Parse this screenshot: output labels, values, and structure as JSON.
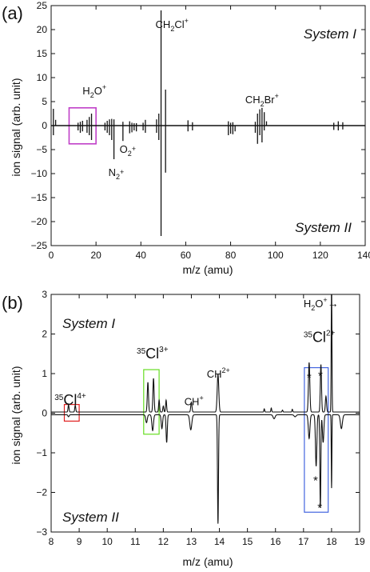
{
  "chart_data": [
    {
      "panel_label": "(a)",
      "type": "line",
      "xlabel": "m/z (amu)",
      "ylabel": "ion signal (arb. unit)",
      "xlim": [
        0,
        140
      ],
      "ylim": [
        -25,
        25
      ],
      "x_ticks": [
        "0",
        "20",
        "40",
        "60",
        "80",
        "100",
        "120",
        "140"
      ],
      "y_ticks": [
        "25",
        "20",
        "15",
        "10",
        "5",
        "0",
        "−5",
        "−10",
        "−15",
        "−20",
        "−25"
      ],
      "top_label": "System I",
      "bottom_label": "System II",
      "annotations": [
        {
          "base": "H",
          "sub": "2",
          "rest": "O",
          "sup": "+",
          "x": 14,
          "y": 6.5
        },
        {
          "base": "CH",
          "sub": "2",
          "rest": "Cl",
          "sup": "+",
          "x": 46.5,
          "y": 20.3
        },
        {
          "base": "CH",
          "sub": "2",
          "rest": "Br",
          "sup": "+",
          "x": 86.5,
          "y": 4.7
        },
        {
          "base": "O",
          "sub": "2",
          "rest": "",
          "sup": "+",
          "x": 30.5,
          "y": -5.7
        },
        {
          "base": "N",
          "sub": "2",
          "rest": "",
          "sup": "+",
          "x": 25.5,
          "y": -10.5
        }
      ],
      "highlight": {
        "color": "#c040c8",
        "x": [
          8,
          20
        ],
        "y": [
          -3.8,
          3.7
        ]
      },
      "system_I_peaks": [
        [
          1,
          3.5
        ],
        [
          2,
          1.2
        ],
        [
          12,
          0.6
        ],
        [
          13,
          0.8
        ],
        [
          14,
          1.0
        ],
        [
          16,
          1.2
        ],
        [
          17,
          1.8
        ],
        [
          18,
          2.5
        ],
        [
          24,
          0.6
        ],
        [
          25,
          1.0
        ],
        [
          26,
          1.3
        ],
        [
          27,
          1.4
        ],
        [
          28,
          1.3
        ],
        [
          32,
          0.8
        ],
        [
          35,
          0.9
        ],
        [
          36,
          0.6
        ],
        [
          37,
          0.5
        ],
        [
          38,
          0.5
        ],
        [
          41,
          0.6
        ],
        [
          42,
          1.2
        ],
        [
          47,
          1.3
        ],
        [
          48,
          2.5
        ],
        [
          49,
          24.0
        ],
        [
          51,
          7.5
        ],
        [
          61,
          1.1
        ],
        [
          63,
          0.7
        ],
        [
          79,
          0.9
        ],
        [
          80,
          0.6
        ],
        [
          81,
          0.7
        ],
        [
          91,
          0.8
        ],
        [
          92,
          2.5
        ],
        [
          93,
          3.4
        ],
        [
          94,
          3.7
        ],
        [
          95,
          2.8
        ],
        [
          96,
          0.9
        ],
        [
          126,
          0.6
        ],
        [
          128,
          0.9
        ],
        [
          130,
          0.7
        ]
      ],
      "system_II_peaks": [
        [
          1,
          -2.0
        ],
        [
          12,
          -1.0
        ],
        [
          13,
          -1.5
        ],
        [
          14,
          -1.2
        ],
        [
          16,
          -1.5
        ],
        [
          17,
          -2.0
        ],
        [
          18,
          -3.0
        ],
        [
          24,
          -1.0
        ],
        [
          25,
          -1.5
        ],
        [
          26,
          -2.0
        ],
        [
          27,
          -3.0
        ],
        [
          28,
          -7.0
        ],
        [
          32,
          -3.2
        ],
        [
          35,
          -1.6
        ],
        [
          36,
          -1.4
        ],
        [
          37,
          -1.0
        ],
        [
          38,
          -1.2
        ],
        [
          41,
          -1.0
        ],
        [
          42,
          -1.5
        ],
        [
          47,
          -1.5
        ],
        [
          48,
          -3.0
        ],
        [
          49,
          -23.0
        ],
        [
          51,
          -9.8
        ],
        [
          61,
          -1.2
        ],
        [
          63,
          -1.0
        ],
        [
          79,
          -2.0
        ],
        [
          80,
          -1.7
        ],
        [
          81,
          -1.8
        ],
        [
          82,
          -1.2
        ],
        [
          91,
          -1.5
        ],
        [
          92,
          -3.8
        ],
        [
          93,
          -2.0
        ],
        [
          94,
          -3.5
        ],
        [
          95,
          -1.0
        ],
        [
          126,
          -0.9
        ],
        [
          128,
          -1.0
        ],
        [
          130,
          -0.8
        ]
      ]
    },
    {
      "panel_label": "(b)",
      "type": "line",
      "xlabel": "m/z (amu)",
      "ylabel": "ion signal (arb. unit)",
      "xlim": [
        8,
        19
      ],
      "ylim": [
        -3,
        3
      ],
      "x_ticks": [
        "8",
        "9",
        "10",
        "11",
        "12",
        "13",
        "14",
        "15",
        "16",
        "17",
        "18",
        "19"
      ],
      "y_ticks": [
        "3",
        "2",
        "1",
        "0",
        "−1",
        "−2",
        "−3"
      ],
      "top_label": "System I",
      "bottom_label": "System II",
      "annotations": [
        {
          "iso": "35",
          "el": "Cl",
          "charge": "4+",
          "color": "#e02020",
          "x": 8.12,
          "y": 0.21
        },
        {
          "iso": "35",
          "el": "Cl",
          "charge": "3+",
          "color": "#66dd22",
          "x": 11.05,
          "y": 1.38
        },
        {
          "iso": "35",
          "el": "Cl",
          "charge": "2+",
          "color": "#3050e0",
          "x": 17.0,
          "y": 1.8
        },
        {
          "base": "CH",
          "sub": "",
          "rest": "",
          "sup": "+",
          "color": "#111111",
          "x": 12.75,
          "y": 0.2
        },
        {
          "base": "CH",
          "sub": "",
          "rest": "",
          "sup": "2+",
          "color": "#111111",
          "x": 13.55,
          "y": 0.9
        },
        {
          "base": "H",
          "sub": "2",
          "rest": "O",
          "sup": "+",
          "arrow": "→",
          "color": "#111111",
          "x": 17.0,
          "y": 2.68
        }
      ],
      "highlights": [
        {
          "color": "#e02020",
          "x": [
            8.47,
            9.0
          ],
          "y": [
            -0.2,
            0.22
          ]
        },
        {
          "color": "#66dd22",
          "x": [
            11.3,
            11.85
          ],
          "y": [
            -0.53,
            1.1
          ]
        },
        {
          "color": "#4466e0",
          "x": [
            17.03,
            17.88
          ],
          "y": [
            -2.5,
            1.15
          ]
        }
      ],
      "stars": [
        {
          "x": 17.2,
          "y": 1.0
        },
        {
          "x": 17.6,
          "y": 1.05
        },
        {
          "x": 17.43,
          "y": -1.6
        },
        {
          "x": 17.58,
          "y": -2.28
        }
      ],
      "system_I_peaks": [
        [
          8.62,
          0.18,
          0.025
        ],
        [
          8.86,
          0.17,
          0.025
        ],
        [
          11.45,
          0.75,
          0.03
        ],
        [
          11.65,
          0.85,
          0.03
        ],
        [
          11.85,
          0.3,
          0.025
        ],
        [
          12.0,
          0.15,
          0.025
        ],
        [
          12.1,
          0.3,
          0.025
        ],
        [
          13.0,
          0.25,
          0.03
        ],
        [
          13.95,
          0.95,
          0.04
        ],
        [
          15.6,
          0.08,
          0.02
        ],
        [
          15.85,
          0.1,
          0.02
        ],
        [
          16.25,
          0.05,
          0.02
        ],
        [
          16.6,
          0.07,
          0.02
        ],
        [
          17.2,
          1.25,
          0.035
        ],
        [
          17.62,
          1.2,
          0.03
        ],
        [
          17.8,
          0.4,
          0.03
        ],
        [
          18.0,
          3.3,
          0.018
        ]
      ],
      "system_II_peaks": [
        [
          8.62,
          -0.05,
          0.03
        ],
        [
          11.4,
          -0.2,
          0.04
        ],
        [
          11.62,
          -0.4,
          0.04
        ],
        [
          11.95,
          -0.35,
          0.035
        ],
        [
          12.12,
          -0.7,
          0.03
        ],
        [
          12.98,
          -0.38,
          0.05
        ],
        [
          13.95,
          -2.75,
          0.025
        ],
        [
          15.95,
          -0.1,
          0.05
        ],
        [
          16.7,
          -0.05,
          0.05
        ],
        [
          17.2,
          -0.6,
          0.04
        ],
        [
          17.45,
          -1.3,
          0.035
        ],
        [
          17.6,
          -2.35,
          0.025
        ],
        [
          17.7,
          -0.7,
          0.035
        ],
        [
          18.0,
          -1.85,
          0.015
        ],
        [
          18.35,
          -0.35,
          0.05
        ]
      ]
    }
  ]
}
